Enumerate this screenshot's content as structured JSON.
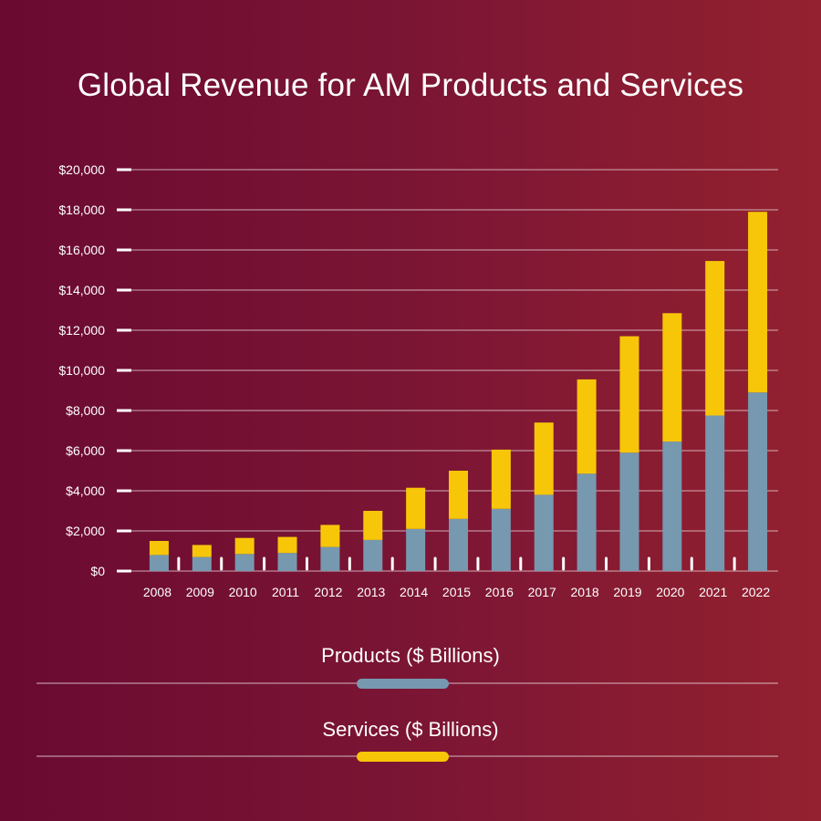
{
  "chart_data": {
    "type": "bar",
    "stacked": true,
    "title": "Global Revenue for AM Products and Services",
    "categories": [
      "2008",
      "2009",
      "2010",
      "2011",
      "2012",
      "2013",
      "2014",
      "2015",
      "2016",
      "2017",
      "2018",
      "2019",
      "2020",
      "2021",
      "2022"
    ],
    "series": [
      {
        "name": "Products ($ Billions)",
        "color": "#7699b0",
        "values": [
          800,
          700,
          850,
          900,
          1200,
          1550,
          2100,
          2600,
          3100,
          3800,
          4850,
          5900,
          6450,
          7750,
          8900
        ]
      },
      {
        "name": "Services ($ Billions)",
        "color": "#f7c608",
        "values": [
          700,
          600,
          800,
          800,
          1100,
          1450,
          2050,
          2400,
          2950,
          3600,
          4700,
          5800,
          6400,
          7700,
          9000
        ]
      }
    ],
    "yticks": [
      "$0",
      "$2,000",
      "$4,000",
      "$6,000",
      "$8,000",
      "$10,000",
      "$12,000",
      "$14,000",
      "$16,000",
      "$18,000",
      "$20,000"
    ],
    "ylim": [
      0,
      20000
    ],
    "grid": true,
    "legend_position": "bottom"
  }
}
